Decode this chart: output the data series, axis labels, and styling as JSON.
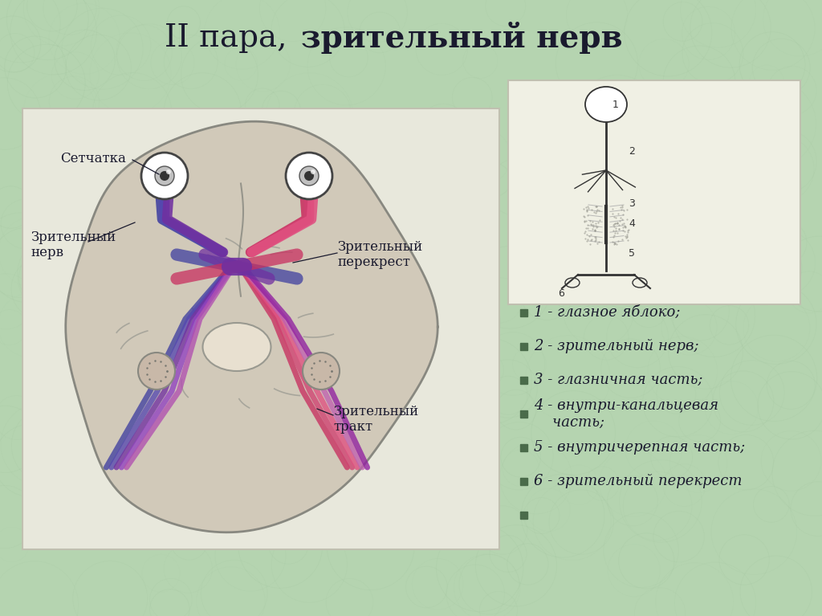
{
  "title_normal": "II пара, ",
  "title_bold": "зрительный нерв",
  "background_color": "#b5d4b0",
  "text_color": "#1a1a2e",
  "bullet_color": "#4a6b4a",
  "left_box_bg": "#e8e8dc",
  "right_box_bg": "#f0f0e4",
  "label_retina": "Сетчатка",
  "label_nerve": "Зрительный\nнерв",
  "label_chiasm": "Зрительный\nперекрест",
  "label_tract": "Зрительный\nтракт",
  "bullet_items": [
    "1 - глазное яблоко;",
    "2 - зрительный нерв;",
    "3 - глазничная часть;",
    "4 - внутри-канальцевая\n    часть;",
    "5 - внутричерепная часть;",
    "6 - зрительный перекрест",
    ""
  ],
  "title_fontsize": 28,
  "label_fontsize": 12,
  "bullet_fontsize": 13
}
